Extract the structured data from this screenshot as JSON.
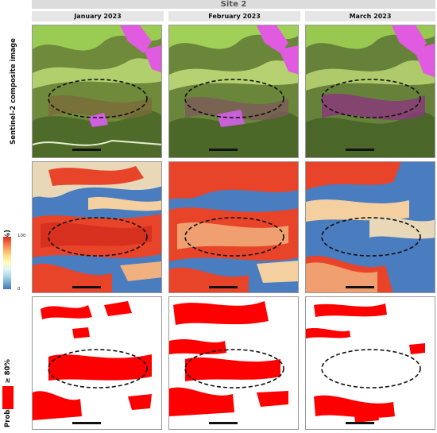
{
  "site_title": "Site 2",
  "columns": [
    "January  2023",
    "February  2023",
    "March  2023"
  ],
  "rows": [
    {
      "label": "Sentinel-2  composite image"
    },
    {
      "label": "Probability (%)"
    },
    {
      "label": "Probability ≥ 80%"
    }
  ],
  "colorbar": {
    "max": "100",
    "min": "0"
  },
  "colors": {
    "header_bg": "#dcdcdc",
    "high": "#d7301f",
    "low": "#4575b4",
    "mask": "#ff0000"
  }
}
